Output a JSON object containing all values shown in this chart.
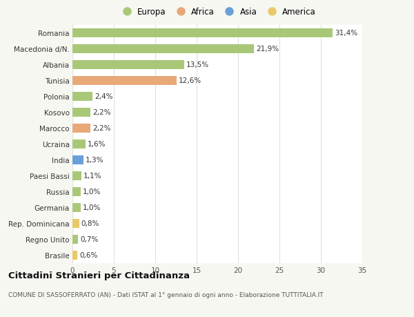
{
  "categories": [
    "Brasile",
    "Regno Unito",
    "Rep. Dominicana",
    "Germania",
    "Russia",
    "Paesi Bassi",
    "India",
    "Ucraina",
    "Marocco",
    "Kosovo",
    "Polonia",
    "Tunisia",
    "Albania",
    "Macedonia d/N.",
    "Romania"
  ],
  "values": [
    0.6,
    0.7,
    0.8,
    1.0,
    1.0,
    1.1,
    1.3,
    1.6,
    2.2,
    2.2,
    2.4,
    12.6,
    13.5,
    21.9,
    31.4
  ],
  "labels": [
    "0,6%",
    "0,7%",
    "0,8%",
    "1,0%",
    "1,0%",
    "1,1%",
    "1,3%",
    "1,6%",
    "2,2%",
    "2,2%",
    "2,4%",
    "12,6%",
    "13,5%",
    "21,9%",
    "31,4%"
  ],
  "colors": [
    "#e8c96a",
    "#a8c878",
    "#e8c96a",
    "#a8c878",
    "#a8c878",
    "#a8c878",
    "#6a9fd8",
    "#a8c878",
    "#e8a878",
    "#a8c878",
    "#a8c878",
    "#e8a878",
    "#a8c878",
    "#a8c878",
    "#a8c878"
  ],
  "legend_labels": [
    "Europa",
    "Africa",
    "Asia",
    "America"
  ],
  "legend_colors": [
    "#a8c878",
    "#e8a878",
    "#6a9fd8",
    "#e8c96a"
  ],
  "title": "Cittadini Stranieri per Cittadinanza",
  "subtitle": "COMUNE DI SASSOFERRATO (AN) - Dati ISTAT al 1° gennaio di ogni anno - Elaborazione TUTTITALIA.IT",
  "xlim": [
    0,
    35
  ],
  "xticks": [
    0,
    5,
    10,
    15,
    20,
    25,
    30,
    35
  ],
  "bg_color": "#f7f7f2",
  "plot_bg_color": "#ffffff",
  "grid_color": "#e0e0e0",
  "bar_height": 0.55,
  "label_fontsize": 7.5,
  "tick_fontsize": 7.5,
  "legend_fontsize": 8.5,
  "title_fontsize": 9.5,
  "subtitle_fontsize": 6.5
}
